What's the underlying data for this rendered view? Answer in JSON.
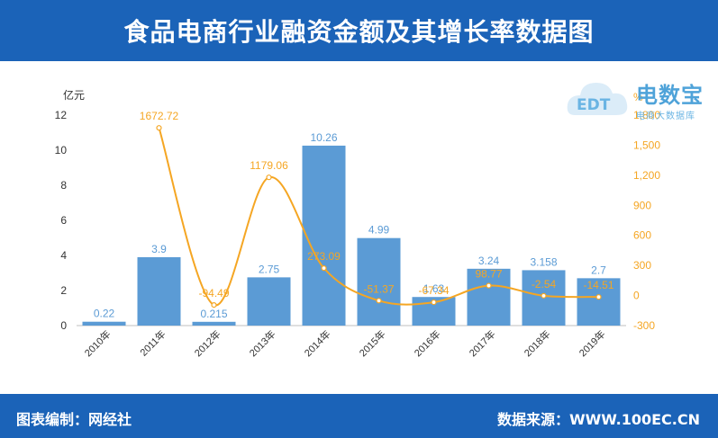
{
  "header": {
    "title": "食品电商行业融资金额及其增长率数据图"
  },
  "footer": {
    "left": "图表编制：网经社",
    "right": "数据来源：WWW.100EC.CN"
  },
  "logo": {
    "name": "电数宝",
    "subtitle": "电商大数据库",
    "mark": "EDT"
  },
  "colors": {
    "header_bg": "#1b63b8",
    "bar": "#5b9bd5",
    "line": "#f5a623",
    "bar_label": "#5b9bd5",
    "line_label": "#f5a623"
  },
  "chart_data": {
    "type": "bar",
    "categories": [
      "2010年",
      "2011年",
      "2012年",
      "2013年",
      "2014年",
      "2015年",
      "2016年",
      "2017年",
      "2018年",
      "2019年"
    ],
    "series": [
      {
        "type": "bar",
        "axis": "left",
        "values": [
          0.22,
          3.9,
          0.215,
          2.75,
          10.26,
          4.99,
          1.63,
          3.24,
          3.158,
          2.7
        ],
        "labels": [
          "0.22",
          "3.9",
          "0.215",
          "2.75",
          "10.26",
          "4.99",
          "1.63",
          "3.24",
          "3.158",
          "2.7"
        ]
      },
      {
        "type": "line",
        "axis": "right",
        "smooth": true,
        "x": [
          "2011年",
          "2012年",
          "2013年",
          "2014年",
          "2015年",
          "2016年",
          "2017年",
          "2018年",
          "2019年"
        ],
        "values": [
          1672.72,
          -94.49,
          1179.06,
          273.09,
          -51.37,
          -67.34,
          98.77,
          -2.54,
          -14.51
        ],
        "labels": [
          "1672.72",
          "-94.49",
          "1179.06",
          "273.09",
          "-51.37",
          "-67.34",
          "98.77",
          "-2.54",
          "-14.51"
        ]
      }
    ],
    "ylabel": "亿元",
    "y2label": "%",
    "ylim": [
      0,
      12
    ],
    "yticks": [
      "0",
      "2",
      "4",
      "6",
      "8",
      "10",
      "12"
    ],
    "y2lim": [
      -300,
      1800
    ],
    "y2ticks": [
      "-300",
      "0",
      "300",
      "600",
      "900",
      "1,200",
      "1,500",
      "1,800"
    ],
    "grid": false,
    "legend": "none"
  }
}
